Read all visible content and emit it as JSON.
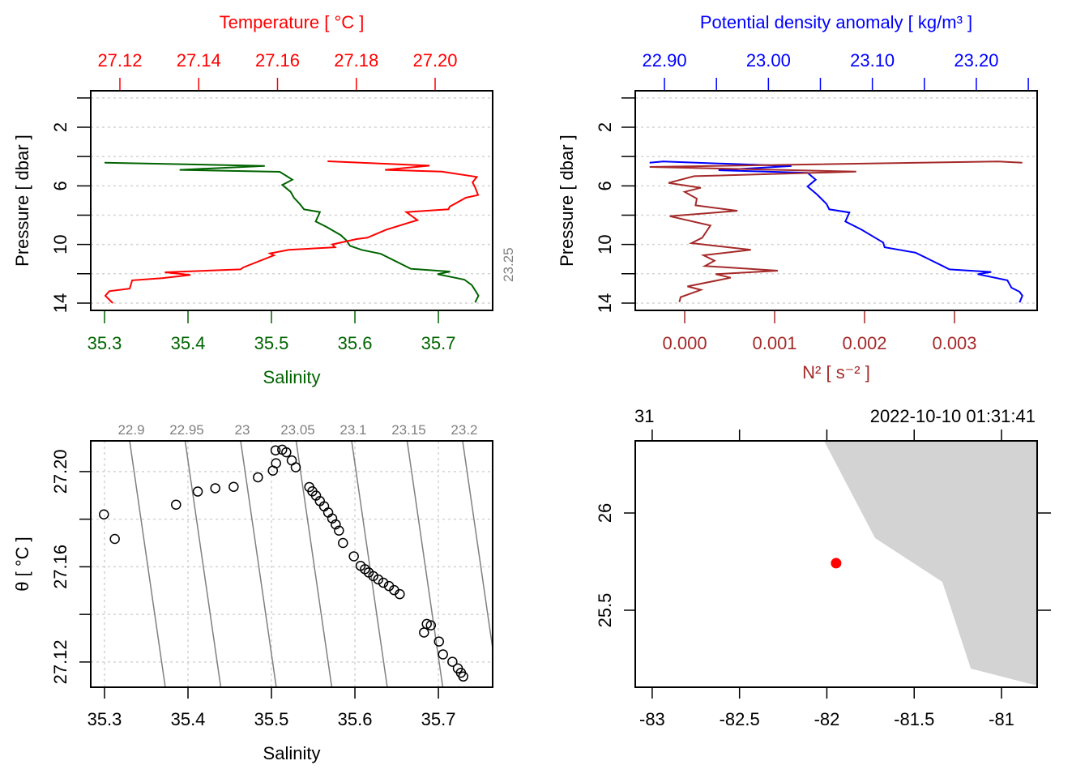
{
  "colors": {
    "salinity": "#006400",
    "temperature": "#ff0000",
    "sigma": "#0000ff",
    "n2": "#a52a2a",
    "isopycnal": "#808080",
    "land": "#d3d3d3",
    "station": "#ff0000",
    "grid": "#d3d3d3"
  },
  "chart_data": [
    {
      "type": "line",
      "name": "TS profile",
      "title": "Temperature [ °C ]",
      "xlabel": "Salinity",
      "ylabel": "Pressure [ dbar ]",
      "ylim": [
        14.5,
        -0.49
      ],
      "yticks": [
        0,
        2,
        4,
        6,
        8,
        10,
        12,
        14
      ],
      "yticklabels": [
        "2",
        "6",
        "10",
        "14"
      ],
      "ylabelvalues": [
        2,
        6,
        10,
        14
      ],
      "bottom_axis": {
        "lim": [
          35.2835,
          35.765
        ],
        "ticks": [
          35.3,
          35.4,
          35.5,
          35.6,
          35.7
        ],
        "labels": [
          "35.3",
          "35.4",
          "35.5",
          "35.6",
          "35.7"
        ]
      },
      "top_axis": {
        "lim": [
          27.1126,
          27.2146
        ],
        "ticks": [
          27.12,
          27.14,
          27.16,
          27.18,
          27.2
        ],
        "labels": [
          "27.12",
          "27.14",
          "27.16",
          "27.18",
          "27.20"
        ]
      },
      "series": [
        {
          "name": "Salinity",
          "axis": "bottom",
          "color": "#006400",
          "pressure": [
            4.42,
            4.64,
            4.91,
            5.04,
            5.58,
            5.94,
            6.41,
            6.81,
            7.24,
            7.6,
            7.79,
            8.43,
            8.8,
            9.36,
            9.73,
            10.09,
            10.37,
            10.64,
            11.66,
            11.85,
            12.03,
            12.4,
            12.77,
            13.13,
            13.5,
            13.96
          ],
          "values": [
            35.3,
            35.492,
            35.39,
            35.51,
            35.525,
            35.513,
            35.523,
            35.527,
            35.534,
            35.539,
            35.558,
            35.553,
            35.566,
            35.583,
            35.59,
            35.594,
            35.608,
            35.631,
            35.667,
            35.714,
            35.699,
            35.731,
            35.74,
            35.744,
            35.748,
            35.744
          ]
        },
        {
          "name": "Temperature",
          "axis": "top",
          "color": "#ff0000",
          "pressure": [
            4.32,
            4.62,
            4.91,
            5.03,
            5.39,
            5.76,
            6.13,
            6.63,
            6.81,
            7.42,
            7.6,
            7.79,
            8.34,
            8.99,
            9.54,
            9.63,
            10.0,
            10.19,
            10.37,
            10.61,
            10.74,
            11.57,
            11.7,
            11.9,
            12.08,
            12.3,
            12.45,
            13.01,
            13.19,
            13.5,
            14.0
          ],
          "values": [
            27.1727,
            27.1986,
            27.1873,
            27.2017,
            27.2106,
            27.2095,
            27.2102,
            27.2109,
            27.2078,
            27.2037,
            27.2034,
            27.1927,
            27.1955,
            27.1876,
            27.1828,
            27.1801,
            27.1739,
            27.1746,
            27.1629,
            27.1581,
            27.1591,
            27.1513,
            27.1506,
            27.1314,
            27.1379,
            27.1307,
            27.1231,
            27.1225,
            27.1173,
            27.1163,
            27.1182
          ]
        }
      ],
      "grid": true
    },
    {
      "type": "line",
      "name": "Density and N2 profile",
      "title": "Potential density anomaly [ kg/m³ ]",
      "xlabel": "N² [ s⁻² ]",
      "ylabel": "Pressure [ dbar ]",
      "ylim": [
        14.5,
        -0.49
      ],
      "yticks": [
        0,
        2,
        4,
        6,
        8,
        10,
        12,
        14
      ],
      "yticklabels": [
        "2",
        "6",
        "10",
        "14"
      ],
      "ylabelvalues": [
        2,
        6,
        10,
        14
      ],
      "bottom_axis": {
        "lim": [
          -0.00055,
          0.003919
        ],
        "ticks": [
          0,
          0.001,
          0.002,
          0.003
        ],
        "labels": [
          "0.000",
          "0.001",
          "0.002",
          "0.003"
        ]
      },
      "top_axis": {
        "lim": [
          22.8719,
          23.2585
        ],
        "ticks": [
          22.9,
          22.95,
          23.0,
          23.05,
          23.1,
          23.15,
          23.2,
          23.25
        ],
        "labels": [
          "22.90",
          "",
          "23.00",
          "",
          "23.10",
          "",
          "23.20",
          ""
        ]
      },
      "series": [
        {
          "name": "Potential density anomaly",
          "axis": "top",
          "color": "#0000ff",
          "pressure": [
            4.42,
            4.34,
            4.65,
            4.93,
            5.11,
            5.58,
            6.04,
            6.59,
            7.24,
            7.6,
            7.82,
            8.43,
            8.99,
            9.54,
            9.87,
            10.19,
            10.56,
            11.47,
            11.7,
            11.88,
            12.03,
            12.45,
            12.95,
            13.23,
            13.5,
            13.96
          ],
          "values": [
            22.8857,
            22.8987,
            23.0221,
            22.952,
            23.0377,
            23.0455,
            23.0377,
            23.0468,
            23.0559,
            23.0585,
            23.0779,
            23.074,
            23.0896,
            23.1026,
            23.1104,
            23.1118,
            23.1416,
            23.1676,
            23.1741,
            23.2143,
            23.2014,
            23.2299,
            23.2338,
            23.2416,
            23.2443,
            23.2416
          ]
        },
        {
          "name": "N2",
          "axis": "bottom",
          "color": "#a52a2a",
          "pressure": [
            4.42,
            4.34,
            4.71,
            5.03,
            5.34,
            5.8,
            6.13,
            6.41,
            6.87,
            7.33,
            7.7,
            8.07,
            8.71,
            9.54,
            9.91,
            10.37,
            10.74,
            11.11,
            11.47,
            11.79,
            12.03,
            12.27,
            12.86,
            13.1,
            13.6,
            13.93
          ],
          "values": [
            0.003754,
            0.003484,
            -0.00039,
            0.001907,
            0.000105,
            -0.00018,
            0.00018,
            0.0,
            0.000135,
            0.00012,
            0.000586,
            -0.000165,
            0.000286,
            0.000195,
            7.5e-05,
            0.000736,
            0.00021,
            0.000331,
            0.000225,
            0.001036,
            0.000345,
            0.000511,
            3e-05,
            0.00018,
            -4.5e-05,
            -6e-05
          ]
        }
      ],
      "grid": true
    },
    {
      "type": "scatter",
      "name": "TS diagram",
      "xlabel": "Salinity",
      "ylabel": "θ [ °C ]",
      "xlim": [
        35.2835,
        35.765
      ],
      "ylim": [
        27.1094,
        27.2129
      ],
      "xticks": [
        35.3,
        35.4,
        35.5,
        35.6,
        35.7
      ],
      "xticklabels": [
        "35.3",
        "35.4",
        "35.5",
        "35.6",
        "35.7"
      ],
      "yticks": [
        27.12,
        27.14,
        27.16,
        27.18,
        27.2
      ],
      "yticklabels": [
        "27.12",
        "27.16",
        "27.20"
      ],
      "ylabelvalues": [
        27.12,
        27.16,
        27.2
      ],
      "isopycnals": {
        "levels": [
          22.9,
          22.95,
          23.0,
          23.05,
          23.1,
          23.15,
          23.2,
          23.25
        ],
        "labels": [
          "22.9",
          "22.95",
          "23",
          "23.05",
          "23.1",
          "23.15",
          "23.2",
          "23.25"
        ]
      },
      "points": {
        "salinity": [
          35.2993,
          35.3123,
          35.3857,
          35.4117,
          35.4327,
          35.4547,
          35.4838,
          35.5017,
          35.5055,
          35.5049,
          35.5129,
          35.5178,
          35.5243,
          35.5291,
          35.5453,
          35.549,
          35.5534,
          35.558,
          35.5631,
          35.568,
          35.5728,
          35.577,
          35.5809,
          35.5857,
          35.5987,
          35.6068,
          35.612,
          35.6165,
          35.622,
          35.6279,
          35.634,
          35.6408,
          35.647,
          35.6537,
          35.6861,
          35.691,
          35.6828,
          35.7007,
          35.7055,
          35.7168,
          35.7233,
          35.727,
          35.7298
        ],
        "theta": [
          27.182,
          27.1717,
          27.1861,
          27.1916,
          27.193,
          27.1936,
          27.1976,
          27.2004,
          27.2035,
          27.2089,
          27.2092,
          27.2081,
          27.2047,
          27.2018,
          27.1935,
          27.1917,
          27.1899,
          27.1876,
          27.1854,
          27.1828,
          27.1803,
          27.1778,
          27.1752,
          27.17,
          27.1644,
          27.1604,
          27.159,
          27.1576,
          27.1561,
          27.1547,
          27.1533,
          27.1519,
          27.1502,
          27.1485,
          27.136,
          27.1354,
          27.1324,
          27.1286,
          27.1232,
          27.1201,
          27.1173,
          27.1155,
          27.1139
        ]
      },
      "grid": true
    },
    {
      "type": "map",
      "name": "Station map",
      "xlim": [
        -83.097,
        -80.796
      ],
      "ylim": [
        25.104,
        26.371
      ],
      "xticks": [
        -83,
        -82.5,
        -82,
        -81.5,
        -81
      ],
      "xticklabels": [
        "-83",
        "-82.5",
        "-82",
        "-81.5",
        "-81"
      ],
      "yticks": [
        26,
        25.5
      ],
      "yticklabels": [
        "26",
        "25.5"
      ],
      "top_labels": {
        "station": "31",
        "time": "2022-10-10 01:31:41"
      },
      "coastline": {
        "lon": [
          -82.016,
          -81.724,
          -81.339,
          -81.176,
          -80.796,
          -80.796
        ],
        "lat": [
          26.371,
          25.871,
          25.646,
          25.2,
          25.1125,
          26.371
        ]
      },
      "station": {
        "lon": -81.947,
        "lat": 25.742
      }
    }
  ]
}
